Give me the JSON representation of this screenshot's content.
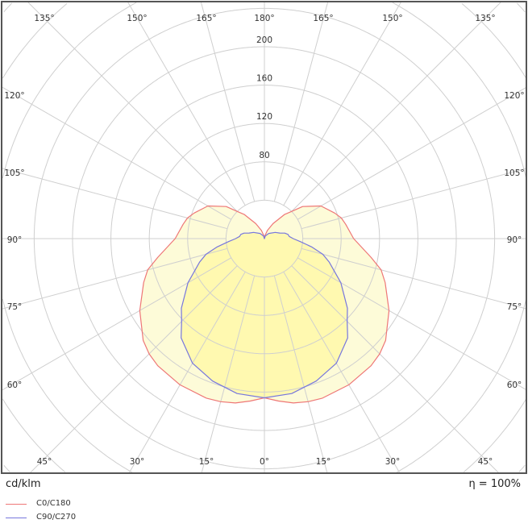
{
  "chart_data": {
    "type": "polar",
    "unit_label": "cd/klm",
    "efficiency_label": "η = 100%",
    "radial_ticks": [
      80,
      120,
      160,
      200
    ],
    "radial_grid_step": 40,
    "angle_labels": {
      "top": [
        "135°",
        "150°",
        "165°",
        "180°",
        "165°",
        "150°",
        "135°"
      ],
      "sides": [
        "120°",
        "105°",
        "90°",
        "75°",
        "60°"
      ],
      "bottom": [
        "45°",
        "30°",
        "15°",
        "0°",
        "15°",
        "30°",
        "45°"
      ]
    },
    "grid": true,
    "series": [
      {
        "name": "C0/C180",
        "color": "#ee7777",
        "gamma": [
          0,
          5,
          10,
          15,
          20,
          30,
          40,
          45,
          50,
          60,
          70,
          75,
          80,
          90,
          100,
          105,
          110,
          120,
          130,
          135,
          140,
          150,
          160,
          170,
          180
        ],
        "values": [
          166,
          170,
          174,
          176,
          177,
          176,
          173,
          170,
          165,
          150,
          134,
          126,
          113,
          93,
          86,
          83,
          78,
          68,
          52,
          40,
          33,
          18,
          9,
          3,
          0
        ]
      },
      {
        "name": "C90/C270",
        "color": "#7777dd",
        "gamma": [
          0,
          10,
          20,
          30,
          40,
          45,
          50,
          60,
          70,
          75,
          80,
          85,
          90,
          95,
          100,
          105,
          110,
          120,
          140,
          160,
          180
        ],
        "values": [
          166,
          164,
          158,
          150,
          135,
          122,
          113,
          92,
          72,
          63,
          50,
          38,
          30,
          26,
          25,
          22,
          17,
          13,
          7,
          3,
          0
        ]
      }
    ],
    "legend_placement": "bottom-left",
    "fill_colors": {
      "C0/C180": "#fdfbd8",
      "C90/C270": "#fff9b0"
    }
  }
}
